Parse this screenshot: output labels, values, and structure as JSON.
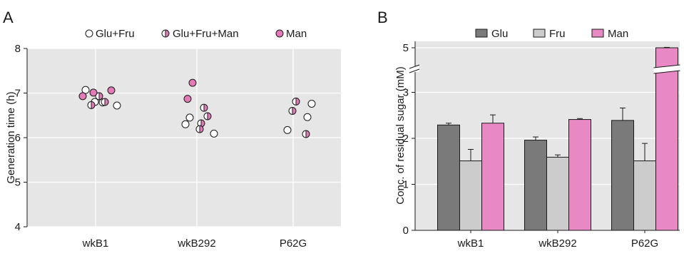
{
  "colors": {
    "plot_bg": "#e6e6e6",
    "grid": "#ffffff",
    "man_pink": "#e27ab8",
    "glu": "#7a7a7a",
    "fru": "#cccccc",
    "man": "#e889c4"
  },
  "panel_a": {
    "letter": "A",
    "legend": [
      "Glu+Fru",
      "Glu+Fru+Man",
      "Man"
    ],
    "ylabel": "Generation time (h)",
    "xlabel": "",
    "ylim": [
      4,
      8
    ],
    "yticks": [
      "4",
      "5",
      "6",
      "7",
      "8"
    ],
    "categories": [
      "wkB1",
      "wkB292",
      "P62G"
    ]
  },
  "panel_b": {
    "letter": "B",
    "legend": [
      "Glu",
      "Fru",
      "Man"
    ],
    "ylabel": "Conc. of residual sugar (mM)",
    "xlabel": "",
    "yticks_lower": [
      "0",
      "1",
      "2",
      "3"
    ],
    "yticks_upper": [
      "5"
    ],
    "categories": [
      "wkB1",
      "wkB292",
      "P62G"
    ]
  },
  "chart_data": [
    {
      "type": "scatter",
      "title": "",
      "xlabel": "",
      "ylabel": "Generation time (h)",
      "ylim": [
        4,
        8
      ],
      "grid": true,
      "legend_position": "top",
      "categories": [
        "wkB1",
        "wkB292",
        "P62G"
      ],
      "series": [
        {
          "name": "Glu+Fru",
          "points": [
            {
              "category": "wkB1",
              "y": 7.07
            },
            {
              "category": "wkB1",
              "y": 6.8
            },
            {
              "category": "wkB1",
              "y": 6.79
            },
            {
              "category": "wkB1",
              "y": 6.72
            },
            {
              "category": "wkB292",
              "y": 6.45
            },
            {
              "category": "wkB292",
              "y": 6.3
            },
            {
              "category": "wkB292",
              "y": 6.09
            },
            {
              "category": "P62G",
              "y": 6.17
            },
            {
              "category": "P62G",
              "y": 6.46
            },
            {
              "category": "P62G",
              "y": 6.76
            }
          ]
        },
        {
          "name": "Glu+Fru+Man",
          "points": [
            {
              "category": "wkB1",
              "y": 6.73
            },
            {
              "category": "wkB1",
              "y": 6.93
            },
            {
              "category": "wkB1",
              "y": 6.8
            },
            {
              "category": "wkB292",
              "y": 6.67
            },
            {
              "category": "wkB292",
              "y": 6.48
            },
            {
              "category": "wkB292",
              "y": 6.32
            },
            {
              "category": "wkB292",
              "y": 6.19
            },
            {
              "category": "P62G",
              "y": 6.6
            },
            {
              "category": "P62G",
              "y": 6.81
            },
            {
              "category": "P62G",
              "y": 6.08
            }
          ]
        },
        {
          "name": "Man",
          "points": [
            {
              "category": "wkB1",
              "y": 6.93
            },
            {
              "category": "wkB1",
              "y": 7.01
            },
            {
              "category": "wkB1",
              "y": 7.06
            },
            {
              "category": "wkB292",
              "y": 7.23
            },
            {
              "category": "wkB292",
              "y": 6.87
            }
          ]
        }
      ]
    },
    {
      "type": "bar",
      "title": "",
      "xlabel": "",
      "ylabel": "Conc. of residual sugar (mM)",
      "ylim": [
        0,
        5
      ],
      "axis_break": [
        3.5,
        4.8
      ],
      "grid": true,
      "legend_position": "top",
      "categories": [
        "wkB1",
        "wkB292",
        "P62G"
      ],
      "series": [
        {
          "name": "Glu",
          "values": [
            2.29,
            1.96,
            2.39
          ],
          "errors": [
            0.04,
            0.07,
            0.27
          ]
        },
        {
          "name": "Fru",
          "values": [
            1.51,
            1.59,
            1.51
          ],
          "errors": [
            0.25,
            0.05,
            0.38
          ]
        },
        {
          "name": "Man",
          "values": [
            2.33,
            2.41,
            5.0
          ],
          "errors": [
            0.18,
            0.02,
            0.02
          ]
        }
      ]
    }
  ]
}
